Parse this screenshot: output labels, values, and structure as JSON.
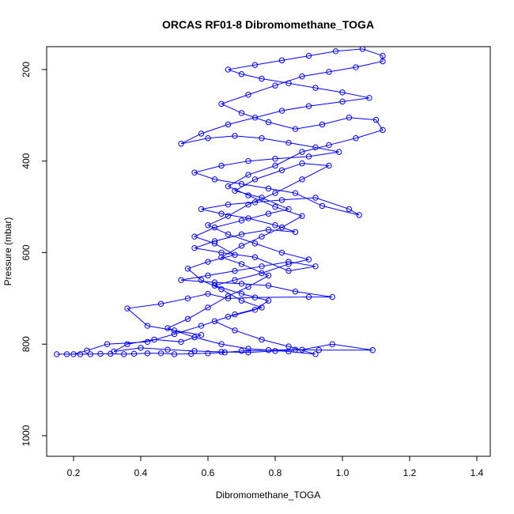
{
  "chart_data": {
    "type": "scatter",
    "title": "ORCAS RF01-8 Dibromomethane_TOGA",
    "xlabel": "Dibromomethane_TOGA",
    "ylabel": "Pressure (mbar)",
    "xlim": [
      0.12,
      1.44
    ],
    "ylim": [
      1045,
      150
    ],
    "y_reversed": true,
    "x_ticks": [
      0.2,
      0.4,
      0.6,
      0.8,
      1.0,
      1.2,
      1.4
    ],
    "x_tick_labels": [
      "0.2",
      "0.4",
      "0.6",
      "0.8",
      "1.0",
      "1.2",
      "1.4"
    ],
    "y_ticks": [
      200,
      400,
      600,
      800,
      1000
    ],
    "y_tick_labels": [
      "200",
      "400",
      "600",
      "800",
      "1000"
    ],
    "grid": false,
    "legend": "none",
    "colors": {
      "series": "#0000ff",
      "axes": "#000000"
    },
    "series": [
      {
        "marker": "open-circle",
        "line": true,
        "points": [
          [
            0.15,
            822
          ],
          [
            0.18,
            822
          ],
          [
            0.22,
            822
          ],
          [
            0.25,
            822
          ],
          [
            0.28,
            821
          ],
          [
            0.31,
            821
          ],
          [
            0.35,
            822
          ],
          [
            0.38,
            821
          ],
          [
            0.42,
            820
          ],
          [
            0.46,
            820
          ],
          [
            0.5,
            822
          ],
          [
            0.55,
            821
          ],
          [
            0.6,
            820
          ],
          [
            0.65,
            818
          ],
          [
            0.7,
            815
          ],
          [
            0.78,
            813
          ],
          [
            0.86,
            812
          ],
          [
            0.93,
            813
          ],
          [
            1.09,
            813
          ],
          [
            0.97,
            800
          ],
          [
            0.88,
            812
          ],
          [
            0.8,
            815
          ],
          [
            0.72,
            818
          ],
          [
            0.64,
            817
          ],
          [
            0.56,
            815
          ],
          [
            0.48,
            812
          ],
          [
            0.4,
            808
          ],
          [
            0.32,
            816
          ],
          [
            0.36,
            800
          ],
          [
            0.44,
            790
          ],
          [
            0.52,
            795
          ],
          [
            0.58,
            780
          ],
          [
            0.5,
            770
          ],
          [
            0.42,
            760
          ],
          [
            0.36,
            722
          ],
          [
            0.46,
            712
          ],
          [
            0.54,
            700
          ],
          [
            0.6,
            690
          ],
          [
            0.66,
            700
          ],
          [
            0.74,
            698
          ],
          [
            0.9,
            697
          ],
          [
            0.97,
            697
          ],
          [
            0.86,
            685
          ],
          [
            0.78,
            672
          ],
          [
            0.7,
            668
          ],
          [
            0.62,
            665
          ],
          [
            0.52,
            660
          ],
          [
            0.6,
            650
          ],
          [
            0.68,
            640
          ],
          [
            0.76,
            630
          ],
          [
            0.84,
            620
          ],
          [
            0.92,
            630
          ],
          [
            0.84,
            640
          ],
          [
            0.74,
            610
          ],
          [
            0.64,
            600
          ],
          [
            0.56,
            590
          ],
          [
            0.62,
            575
          ],
          [
            0.7,
            560
          ],
          [
            0.78,
            550
          ],
          [
            0.86,
            555
          ],
          [
            0.8,
            540
          ],
          [
            0.72,
            525
          ],
          [
            0.64,
            515
          ],
          [
            0.58,
            505
          ],
          [
            0.66,
            495
          ],
          [
            0.74,
            490
          ],
          [
            0.82,
            485
          ],
          [
            0.92,
            480
          ],
          [
            1.02,
            505
          ],
          [
            1.05,
            518
          ],
          [
            0.94,
            498
          ],
          [
            0.86,
            470
          ],
          [
            0.78,
            460
          ],
          [
            0.7,
            450
          ],
          [
            0.62,
            440
          ],
          [
            0.56,
            425
          ],
          [
            0.64,
            410
          ],
          [
            0.72,
            400
          ],
          [
            0.8,
            395
          ],
          [
            0.9,
            390
          ],
          [
            0.99,
            380
          ],
          [
            0.92,
            370
          ],
          [
            0.84,
            360
          ],
          [
            0.76,
            350
          ],
          [
            0.68,
            345
          ],
          [
            0.6,
            350
          ],
          [
            0.52,
            362
          ],
          [
            0.58,
            340
          ],
          [
            0.66,
            320
          ],
          [
            0.74,
            305
          ],
          [
            0.82,
            290
          ],
          [
            0.9,
            280
          ],
          [
            1.0,
            270
          ],
          [
            1.08,
            262
          ],
          [
            1.0,
            250
          ],
          [
            0.92,
            240
          ],
          [
            0.84,
            230
          ],
          [
            0.76,
            220
          ],
          [
            0.7,
            210
          ],
          [
            0.66,
            200
          ],
          [
            0.74,
            190
          ],
          [
            0.82,
            180
          ],
          [
            0.9,
            170
          ],
          [
            0.98,
            160
          ],
          [
            1.06,
            155
          ],
          [
            1.12,
            170
          ],
          [
            1.12,
            182
          ],
          [
            1.04,
            195
          ],
          [
            0.96,
            205
          ],
          [
            0.88,
            215
          ],
          [
            0.8,
            235
          ],
          [
            0.72,
            255
          ],
          [
            0.64,
            275
          ],
          [
            0.7,
            295
          ],
          [
            0.78,
            315
          ],
          [
            0.86,
            330
          ],
          [
            0.94,
            320
          ],
          [
            1.02,
            305
          ],
          [
            1.1,
            310
          ],
          [
            1.12,
            332
          ],
          [
            1.04,
            350
          ],
          [
            0.96,
            365
          ],
          [
            0.88,
            380
          ],
          [
            0.8,
            410
          ],
          [
            0.72,
            430
          ],
          [
            0.66,
            455
          ],
          [
            0.72,
            475
          ],
          [
            0.8,
            500
          ],
          [
            0.88,
            520
          ],
          [
            0.82,
            545
          ],
          [
            0.76,
            565
          ],
          [
            0.7,
            585
          ],
          [
            0.64,
            610
          ],
          [
            0.7,
            625
          ],
          [
            0.78,
            650
          ],
          [
            0.72,
            675
          ],
          [
            0.66,
            695
          ],
          [
            0.6,
            720
          ],
          [
            0.54,
            745
          ],
          [
            0.48,
            765
          ],
          [
            0.56,
            785
          ],
          [
            0.64,
            800
          ],
          [
            0.72,
            810
          ],
          [
            0.84,
            816
          ],
          [
            0.92,
            822
          ],
          [
            0.84,
            805
          ],
          [
            0.76,
            790
          ],
          [
            0.68,
            770
          ],
          [
            0.62,
            750
          ],
          [
            0.68,
            735
          ],
          [
            0.76,
            720
          ],
          [
            0.7,
            705
          ],
          [
            0.64,
            680
          ],
          [
            0.58,
            660
          ],
          [
            0.54,
            635
          ],
          [
            0.6,
            620
          ],
          [
            0.68,
            605
          ],
          [
            0.62,
            580
          ],
          [
            0.56,
            565
          ],
          [
            0.62,
            545
          ],
          [
            0.7,
            530
          ],
          [
            0.78,
            515
          ],
          [
            0.84,
            505
          ],
          [
            0.76,
            480
          ],
          [
            0.68,
            465
          ],
          [
            0.74,
            440
          ],
          [
            0.82,
            420
          ],
          [
            0.88,
            405
          ],
          [
            0.96,
            410
          ],
          [
            0.88,
            440
          ],
          [
            0.8,
            470
          ],
          [
            0.72,
            495
          ],
          [
            0.66,
            520
          ],
          [
            0.6,
            540
          ],
          [
            0.66,
            560
          ],
          [
            0.74,
            580
          ],
          [
            0.82,
            600
          ],
          [
            0.9,
            615
          ],
          [
            0.84,
            625
          ],
          [
            0.76,
            645
          ],
          [
            0.68,
            660
          ],
          [
            0.62,
            672
          ],
          [
            0.7,
            690
          ],
          [
            0.78,
            705
          ],
          [
            0.74,
            725
          ],
          [
            0.66,
            740
          ],
          [
            0.58,
            760
          ],
          [
            0.5,
            778
          ],
          [
            0.42,
            795
          ],
          [
            0.3,
            800
          ],
          [
            0.24,
            814
          ],
          [
            0.2,
            822
          ]
        ]
      }
    ]
  }
}
